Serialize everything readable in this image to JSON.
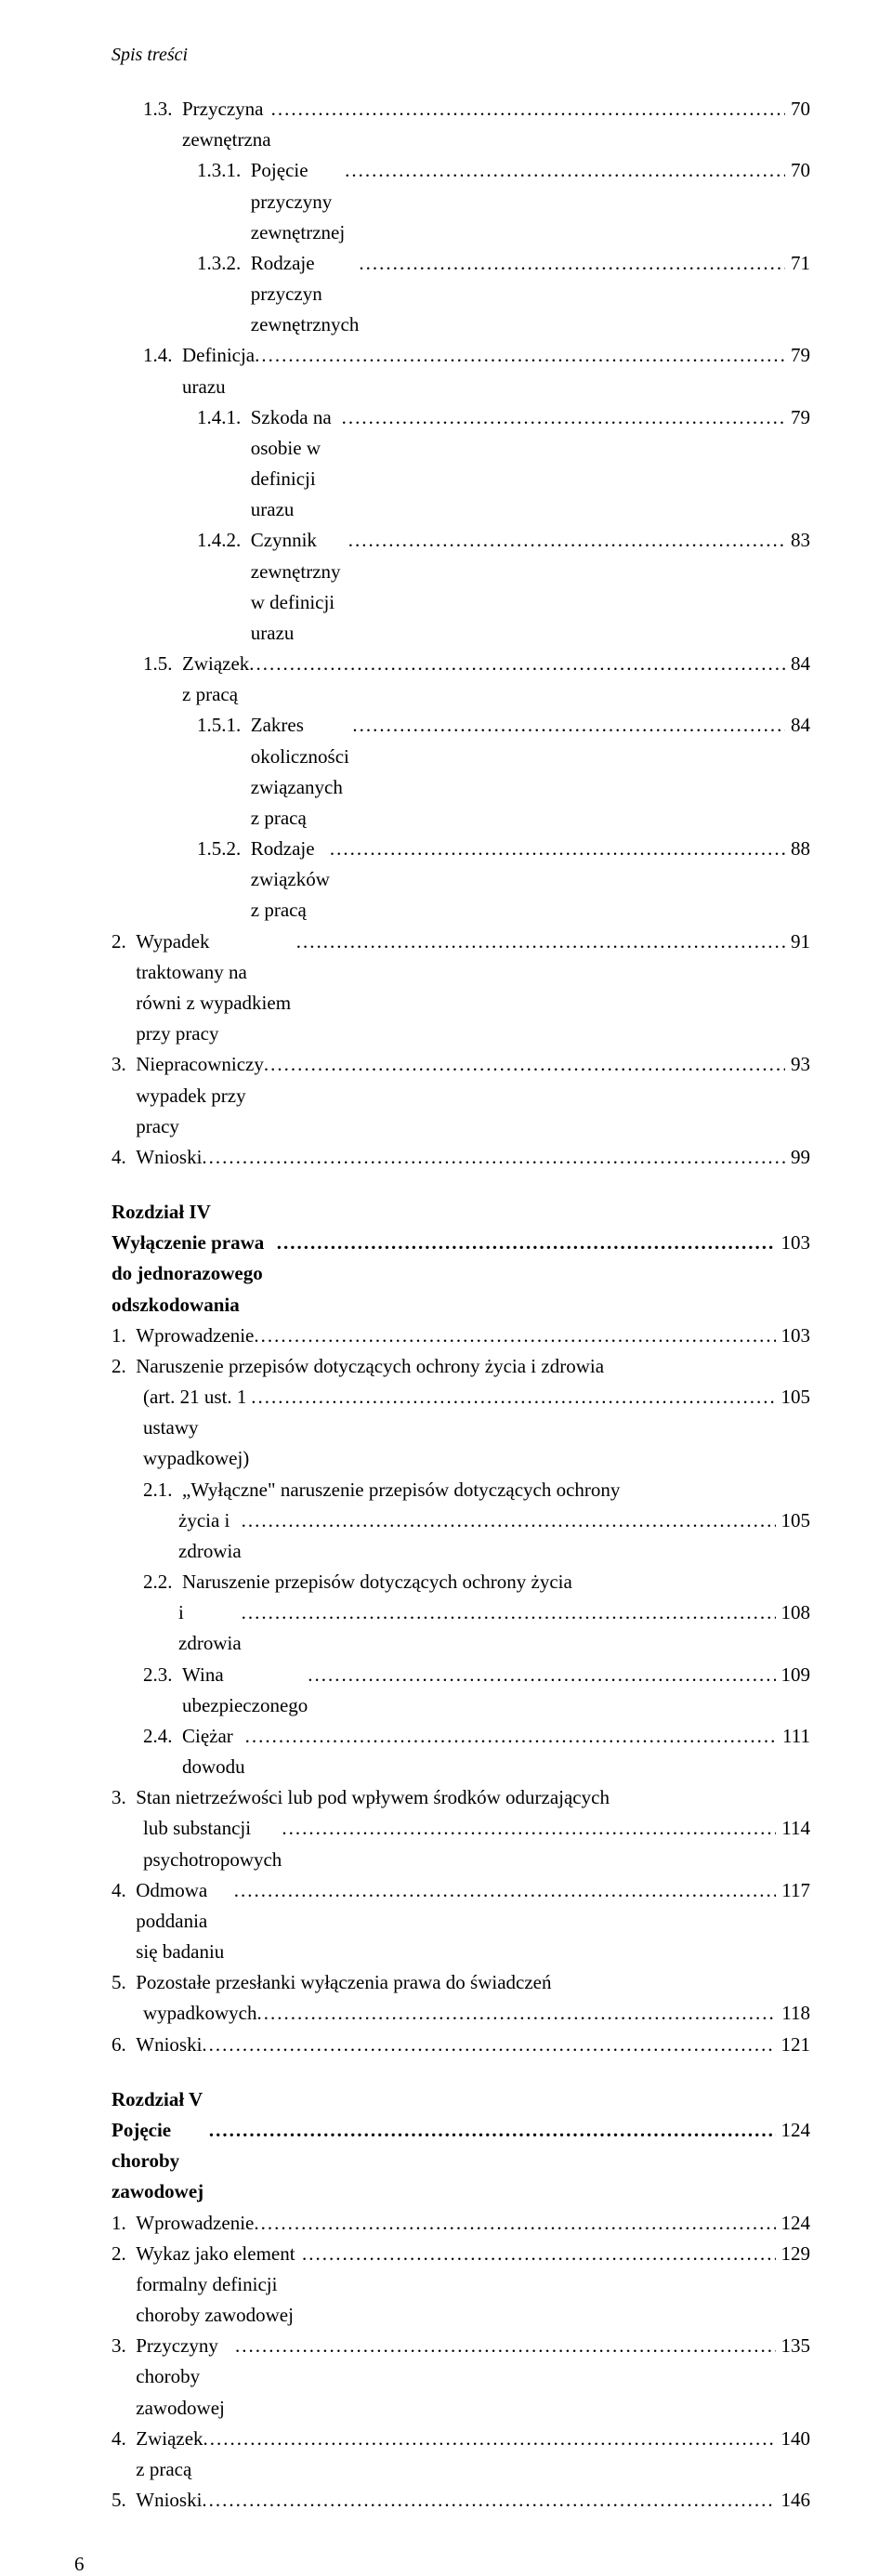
{
  "running_head": "Spis treści",
  "footer_page": "6",
  "entries": [
    {
      "label": "1.3.",
      "text": "Przyczyna zewnętrzna",
      "page": "70",
      "indent": "indent-1"
    },
    {
      "label": "1.3.1.",
      "text": "Pojęcie przyczyny zewnętrznej",
      "page": "70",
      "indent": "indent-2"
    },
    {
      "label": "1.3.2.",
      "text": "Rodzaje przyczyn zewnętrznych",
      "page": "71",
      "indent": "indent-2"
    },
    {
      "label": "1.4.",
      "text": "Definicja urazu",
      "page": "79",
      "indent": "indent-1"
    },
    {
      "label": "1.4.1.",
      "text": "Szkoda na osobie w definicji urazu",
      "page": "79",
      "indent": "indent-2"
    },
    {
      "label": "1.4.2.",
      "text": "Czynnik zewnętrzny w definicji urazu",
      "page": "83",
      "indent": "indent-2"
    },
    {
      "label": "1.5.",
      "text": "Związek z pracą",
      "page": "84",
      "indent": "indent-1"
    },
    {
      "label": "1.5.1.",
      "text": "Zakres okoliczności związanych z pracą",
      "page": "84",
      "indent": "indent-2"
    },
    {
      "label": "1.5.2.",
      "text": "Rodzaje związków z pracą",
      "page": "88",
      "indent": "indent-2"
    },
    {
      "label": "2.",
      "text": "Wypadek traktowany na równi z wypadkiem przy pracy",
      "page": "91",
      "indent": ""
    },
    {
      "label": "3.",
      "text": "Niepracowniczy wypadek przy pracy",
      "page": "93",
      "indent": ""
    },
    {
      "label": "4.",
      "text": "Wnioski",
      "page": "99",
      "indent": ""
    }
  ],
  "chapter4": {
    "head": "Rozdział IV",
    "title": "Wyłączenie prawa do jednorazowego odszkodowania",
    "title_page": "103",
    "entries_a": [
      {
        "label": "1.",
        "text": "Wprowadzenie",
        "page": "103",
        "indent": ""
      },
      {
        "label": "2.",
        "text": "Naruszenie przepisów dotyczących ochrony życia i zdrowia",
        "indent": ""
      }
    ],
    "line_2_cont": {
      "text": "(art. 21 ust. 1 ustawy wypadkowej)",
      "page": "105"
    },
    "entries_b": [
      {
        "label": "2.1.",
        "text": "„Wyłączne\" naruszenie przepisów dotyczących ochrony",
        "indent": "indent-1"
      }
    ],
    "line_21_cont": {
      "text": "życia i zdrowia",
      "page": "105"
    },
    "entries_c": [
      {
        "label": "2.2.",
        "text": "Naruszenie przepisów dotyczących ochrony życia",
        "indent": "indent-1"
      }
    ],
    "line_22_cont": {
      "text": "i zdrowia",
      "page": "108"
    },
    "entries_d": [
      {
        "label": "2.3.",
        "text": "Wina ubezpieczonego",
        "page": "109",
        "indent": "indent-1"
      },
      {
        "label": "2.4.",
        "text": "Ciężar dowodu",
        "page": "111",
        "indent": "indent-1"
      },
      {
        "label": "3.",
        "text": "Stan nietrzeźwości lub pod wpływem środków odurzających",
        "indent": ""
      }
    ],
    "line_3_cont": {
      "text": "lub substancji psychotropowych",
      "page": "114"
    },
    "entries_e": [
      {
        "label": "4.",
        "text": "Odmowa poddania się badaniu",
        "page": "117",
        "indent": ""
      },
      {
        "label": "5.",
        "text": "Pozostałe przesłanki wyłączenia prawa do świadczeń",
        "indent": ""
      }
    ],
    "line_5_cont": {
      "text": "wypadkowych",
      "page": "118"
    },
    "entries_f": [
      {
        "label": "6.",
        "text": "Wnioski",
        "page": "121",
        "indent": ""
      }
    ]
  },
  "chapter5": {
    "head": "Rozdział V",
    "title": "Pojęcie choroby zawodowej",
    "title_page": "124",
    "entries": [
      {
        "label": "1.",
        "text": "Wprowadzenie",
        "page": "124",
        "indent": ""
      },
      {
        "label": "2.",
        "text": "Wykaz jako element formalny definicji choroby zawodowej",
        "page": "129",
        "indent": ""
      },
      {
        "label": "3.",
        "text": "Przyczyny choroby zawodowej",
        "page": "135",
        "indent": ""
      },
      {
        "label": "4.",
        "text": "Związek z pracą",
        "page": "140",
        "indent": ""
      },
      {
        "label": "5.",
        "text": "Wnioski",
        "page": "146",
        "indent": ""
      }
    ]
  }
}
